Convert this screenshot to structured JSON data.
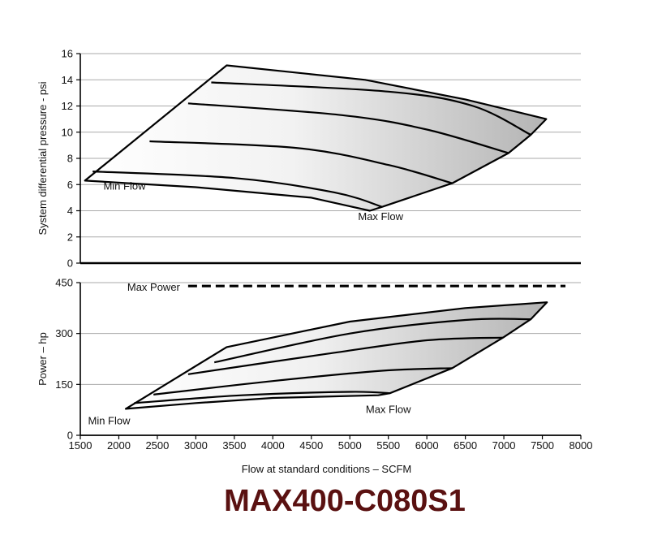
{
  "model_title": "MAX400-C080S1",
  "colors": {
    "model_title": "#5a1111",
    "grid": "#aaaaaa",
    "curve": "#000000",
    "fill_light": "#ffffff",
    "fill_dark": "#b4b4b4"
  },
  "chart_data": [
    {
      "type": "area",
      "ylabel": "System differential pressure - psi",
      "xlim": [
        1500,
        8000
      ],
      "ylim": [
        0,
        16
      ],
      "yticks": [
        0,
        2,
        4,
        6,
        8,
        10,
        12,
        14,
        16
      ],
      "grid": true,
      "envelope": [
        [
          1560,
          6.3
        ],
        [
          3400,
          15.1
        ],
        [
          5200,
          14.0
        ],
        [
          6500,
          12.5
        ],
        [
          7550,
          11.0
        ],
        [
          7350,
          9.8
        ],
        [
          7060,
          8.4
        ],
        [
          6330,
          6.1
        ],
        [
          5420,
          4.3
        ],
        [
          5260,
          4.0
        ],
        [
          4500,
          5.0
        ],
        [
          3000,
          5.8
        ],
        [
          1560,
          6.3
        ]
      ],
      "series": [
        {
          "points": [
            [
              3200,
              13.8
            ],
            [
              5500,
              13.1
            ],
            [
              6600,
              12.0
            ],
            [
              7350,
              9.8
            ]
          ]
        },
        {
          "points": [
            [
              2900,
              12.2
            ],
            [
              4900,
              11.3
            ],
            [
              6000,
              10.2
            ],
            [
              7060,
              8.4
            ]
          ]
        },
        {
          "points": [
            [
              2400,
              9.3
            ],
            [
              4300,
              8.8
            ],
            [
              5500,
              7.5
            ],
            [
              6330,
              6.1
            ]
          ]
        },
        {
          "points": [
            [
              1660,
              7.0
            ],
            [
              3500,
              6.5
            ],
            [
              4800,
              5.4
            ],
            [
              5420,
              4.3
            ]
          ]
        }
      ],
      "annotations": [
        {
          "text": "Min Flow",
          "x": 1800,
          "y": 5.6,
          "anchor": "start"
        },
        {
          "text": "Max Flow",
          "x": 5400,
          "y": 3.3,
          "anchor": "middle"
        }
      ]
    },
    {
      "type": "area",
      "ylabel": "Power – hp",
      "xlabel": "Flow at standard conditions – SCFM",
      "xlim": [
        1500,
        8000
      ],
      "ylim": [
        0,
        450
      ],
      "yticks": [
        0,
        150,
        300,
        450
      ],
      "xticks": [
        1500,
        2000,
        2500,
        3000,
        3500,
        4000,
        4500,
        5000,
        5500,
        6000,
        6500,
        7000,
        7500,
        8000
      ],
      "grid": true,
      "max_power": {
        "label": "Max Power",
        "value": 440,
        "x_start": 2900,
        "x_end": 7800
      },
      "envelope": [
        [
          2090,
          78
        ],
        [
          3400,
          260
        ],
        [
          5000,
          335
        ],
        [
          6500,
          375
        ],
        [
          7560,
          392
        ],
        [
          7350,
          342
        ],
        [
          6990,
          288
        ],
        [
          6330,
          198
        ],
        [
          5520,
          124
        ],
        [
          5370,
          118
        ],
        [
          4000,
          110
        ],
        [
          3000,
          95
        ],
        [
          2090,
          78
        ]
      ],
      "series": [
        {
          "points": [
            [
              3240,
              215
            ],
            [
              5000,
              300
            ],
            [
              6500,
              340
            ],
            [
              7350,
              342
            ]
          ]
        },
        {
          "points": [
            [
              2900,
              180
            ],
            [
              4700,
              240
            ],
            [
              6000,
              280
            ],
            [
              6990,
              288
            ]
          ]
        },
        {
          "points": [
            [
              2450,
              120
            ],
            [
              4000,
              160
            ],
            [
              5400,
              190
            ],
            [
              6330,
              198
            ]
          ]
        },
        {
          "points": [
            [
              2200,
              95
            ],
            [
              3600,
              118
            ],
            [
              5000,
              128
            ],
            [
              5520,
              124
            ]
          ]
        }
      ],
      "annotations": [
        {
          "text": "Min Flow",
          "x": 1600,
          "y": 32,
          "anchor": "start"
        },
        {
          "text": "Max Flow",
          "x": 5500,
          "y": 66,
          "anchor": "middle"
        }
      ]
    }
  ]
}
